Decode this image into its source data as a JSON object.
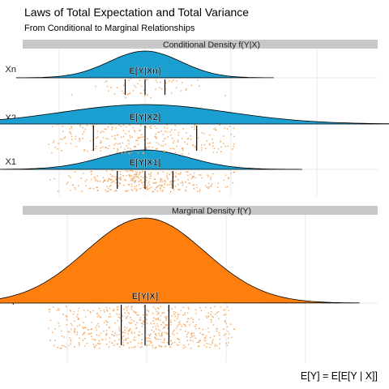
{
  "title": "Laws of Total Expectation and Total Variance",
  "subtitle": "From Conditional to Marginal Relationships",
  "caption": "E[Y] = E[E[Y | X]]",
  "colors": {
    "conditional_fill": "#1a9fd0",
    "marginal_fill": "#ff7f0e",
    "points": "#f5a55a",
    "strip": "#c8c8c8",
    "grid": "#e2e2e2"
  },
  "chart_data": [
    {
      "type": "density",
      "panel": "top",
      "strip_label": "Conditional Density f(Y|X)",
      "categories": [
        "X1",
        "X2",
        "Xn"
      ],
      "grid": true,
      "series": [
        {
          "name": "X1",
          "mean": 0.0,
          "sd": 0.55,
          "mean_label": "E[Y|X1]",
          "quantiles": [
            -0.35,
            0.0,
            0.35
          ],
          "n_points": 320
        },
        {
          "name": "X2",
          "mean": 0.0,
          "sd": 1.05,
          "mean_label": "E[Y|X2]",
          "quantiles": [
            -0.65,
            0.0,
            0.65
          ],
          "n_points": 380
        },
        {
          "name": "Xn",
          "mean": 0.0,
          "sd": 0.45,
          "mean_label": "E[Y|Xn]",
          "quantiles": [
            -0.25,
            0.0,
            0.25
          ],
          "n_points": 60
        }
      ]
    },
    {
      "type": "density",
      "panel": "bottom",
      "strip_label": "Marginal Density f(Y)",
      "categories": [
        "Y"
      ],
      "grid": true,
      "series": [
        {
          "name": "Y",
          "mean": 0.0,
          "sd": 0.75,
          "mean_label": "E[Y|X]",
          "quantiles": [
            -0.3,
            0.0,
            0.3
          ],
          "n_points": 650
        }
      ]
    }
  ]
}
